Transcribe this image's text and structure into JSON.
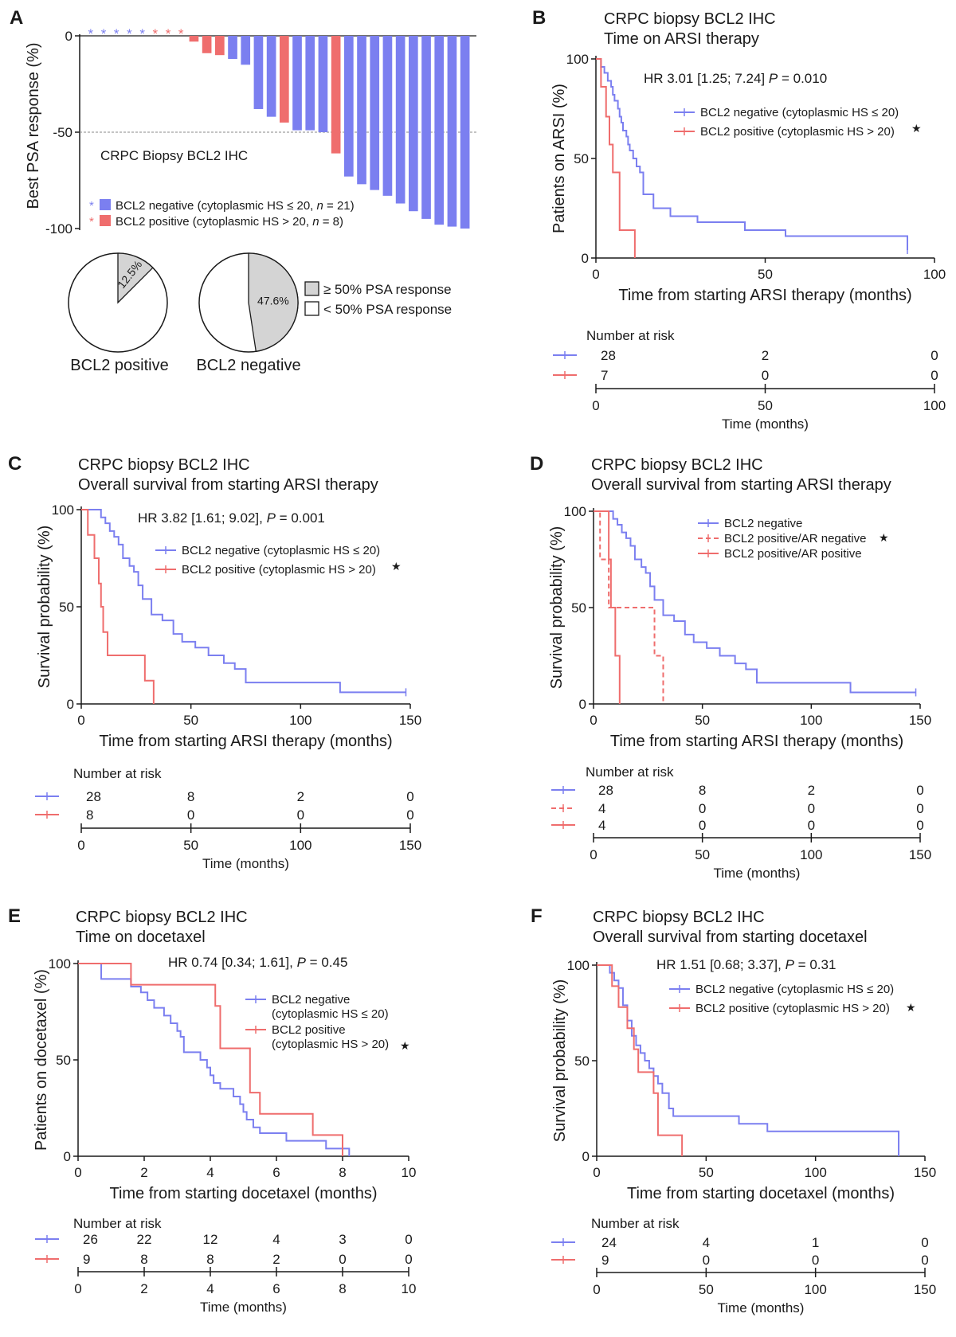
{
  "colors": {
    "negative": "#7b7ff0",
    "positive": "#ef6d6d",
    "axis": "#1a1a1a",
    "pie_fill": "#d4d4d4"
  },
  "panelA": {
    "letter": "A",
    "ylabel": "Best PSA response (%)",
    "subtitle": "CRPC Biopsy BCL2 IHC",
    "legend": [
      {
        "prefix": "BCL2 negative (cytoplasmic HS ≤ 20, ",
        "n": "n",
        "suffix": " = 21)",
        "color": "negative"
      },
      {
        "prefix": "BCL2 positive (cytoplasmic HS > 20, ",
        "n": "n",
        "suffix": " = 8)",
        "color": "positive"
      }
    ],
    "star": "*",
    "pies": [
      {
        "label": "BCL2 positive",
        "pct_label": "12.5%",
        "fraction": 0.125
      },
      {
        "label": "BCL2 negative",
        "pct_label": "47.6%",
        "fraction": 0.476
      }
    ],
    "pie_legend": [
      "≥ 50% PSA response",
      "< 50% PSA response"
    ]
  },
  "panelB": {
    "letter": "B",
    "title": [
      "CRPC biopsy BCL2 IHC",
      "Time on ARSI therapy"
    ],
    "hr_text": "HR 3.01 [1.25; 7.24] ",
    "p_label": "P",
    "p_text": " = 0.010",
    "ylabel": "Patients on ARSI (%)",
    "xlabel": "Time from starting ARSI therapy (months)",
    "legend": [
      "BCL2 negative (cytoplasmic HS ≤ 20)",
      "BCL2 positive (cytoplasmic HS > 20)"
    ],
    "risk_title": "Number at risk",
    "risk_rows": [
      [
        "28",
        "2",
        "0"
      ],
      [
        "7",
        "0",
        "0"
      ]
    ],
    "risk_xlabel": "Time (months)",
    "xticks": [
      "0",
      "50",
      "100"
    ],
    "yticks": [
      "0",
      "50",
      "100"
    ]
  },
  "panelC": {
    "letter": "C",
    "title": [
      "CRPC biopsy BCL2 IHC",
      "Overall survival from starting ARSI therapy"
    ],
    "hr_text": "HR 3.82 [1.61; 9.02], ",
    "p_label": "P",
    "p_text": " = 0.001",
    "ylabel": "Survival probability (%)",
    "xlabel": "Time from starting ARSI therapy (months)",
    "legend": [
      "BCL2 negative (cytoplasmic HS ≤ 20)",
      "BCL2 positive (cytoplasmic HS > 20)"
    ],
    "risk_title": "Number at risk",
    "risk_rows": [
      [
        "28",
        "8",
        "2",
        "0"
      ],
      [
        "8",
        "0",
        "0",
        "0"
      ]
    ],
    "risk_xlabel": "Time (months)",
    "xticks": [
      "0",
      "50",
      "100",
      "150"
    ],
    "yticks": [
      "0",
      "50",
      "100"
    ]
  },
  "panelD": {
    "letter": "D",
    "title": [
      "CRPC biopsy BCL2 IHC",
      "Overall survival from starting ARSI therapy"
    ],
    "ylabel": "Survival probability (%)",
    "xlabel": "Time from starting ARSI therapy (months)",
    "legend": [
      "BCL2 negative",
      "BCL2 positive/AR negative",
      "BCL2 positive/AR positive"
    ],
    "risk_title": "Number at risk",
    "risk_rows": [
      [
        "28",
        "8",
        "2",
        "0"
      ],
      [
        "4",
        "0",
        "0",
        "0"
      ],
      [
        "4",
        "0",
        "0",
        "0"
      ]
    ],
    "risk_xlabel": "Time (months)",
    "xticks": [
      "0",
      "50",
      "100",
      "150"
    ],
    "yticks": [
      "0",
      "50",
      "100"
    ]
  },
  "panelE": {
    "letter": "E",
    "title": [
      "CRPC biopsy BCL2 IHC",
      "Time on docetaxel"
    ],
    "hr_text": "HR 0.74 [0.34; 1.61], ",
    "p_label": "P",
    "p_text": " = 0.45",
    "ylabel": "Patients on docetaxel (%)",
    "xlabel": "Time from starting docetaxel (months)",
    "legend": [
      [
        "BCL2 negative",
        "(cytoplasmic HS ≤ 20)"
      ],
      [
        "BCL2 positive",
        "(cytoplasmic HS > 20)"
      ]
    ],
    "risk_title": "Number at risk",
    "risk_rows": [
      [
        "26",
        "22",
        "12",
        "4",
        "3",
        "0"
      ],
      [
        "9",
        "8",
        "8",
        "2",
        "0",
        "0"
      ]
    ],
    "risk_xlabel": "Time (months)",
    "xticks": [
      "0",
      "2",
      "4",
      "6",
      "8",
      "10"
    ],
    "yticks": [
      "0",
      "50",
      "100"
    ]
  },
  "panelF": {
    "letter": "F",
    "title": [
      "CRPC biopsy BCL2 IHC",
      "Overall survival from starting docetaxel"
    ],
    "hr_text": "HR 1.51 [0.68; 3.37], ",
    "p_label": "P",
    "p_text": " = 0.31",
    "ylabel": "Survival probability (%)",
    "xlabel": "Time from starting docetaxel (months)",
    "legend": [
      "BCL2 negative (cytoplasmic HS ≤ 20)",
      "BCL2 positive (cytoplasmic HS > 20)"
    ],
    "risk_title": "Number at risk",
    "risk_rows": [
      [
        "24",
        "4",
        "1",
        "0"
      ],
      [
        "9",
        "0",
        "0",
        "0"
      ]
    ],
    "risk_xlabel": "Time (months)",
    "xticks": [
      "0",
      "50",
      "100",
      "150"
    ],
    "yticks": [
      "0",
      "50",
      "100"
    ]
  },
  "sig_star": "★",
  "chart_data": [
    {
      "panel": "A",
      "type": "bar",
      "ylabel": "Best PSA response (%)",
      "ylim": [
        -100,
        0
      ],
      "yticks": [
        0,
        -50,
        -100
      ],
      "threshold": -50,
      "values": [
        0,
        0,
        0,
        0,
        0,
        0,
        0,
        0,
        -3,
        -9,
        -10,
        -12,
        -15,
        -38,
        -42,
        -45,
        -49,
        -49,
        -50,
        -61,
        -73,
        -77,
        -80,
        -83,
        -87,
        -91,
        -95,
        -98,
        -99,
        -100
      ],
      "groups": [
        "neg",
        "neg",
        "neg",
        "neg",
        "neg",
        "pos",
        "pos",
        "pos",
        "pos",
        "pos",
        "pos",
        "neg",
        "neg",
        "neg",
        "neg",
        "pos",
        "neg",
        "neg",
        "neg",
        "pos",
        "neg",
        "neg",
        "neg",
        "neg",
        "neg",
        "neg",
        "neg",
        "neg",
        "neg",
        "neg"
      ],
      "star_groups": [
        "neg",
        "neg",
        "neg",
        "neg",
        "neg",
        "pos",
        "pos",
        "pos"
      ]
    },
    {
      "panel": "B",
      "type": "line",
      "xlim": [
        0,
        100
      ],
      "ylim": [
        0,
        100
      ],
      "series": [
        {
          "name": "BCL2 negative (cytoplasmic HS ≤ 20)",
          "color": "negative",
          "x": [
            0,
            1.5,
            2.5,
            3.5,
            4.5,
            5,
            5.5,
            6.5,
            7,
            7.5,
            8,
            9,
            9.5,
            10,
            11,
            12,
            13,
            14,
            17,
            22,
            30,
            44,
            56,
            92
          ],
          "y": [
            100,
            96,
            93,
            89,
            86,
            82,
            79,
            75,
            71,
            68,
            64,
            61,
            57,
            54,
            50,
            46,
            43,
            32,
            25,
            21,
            18,
            14,
            11,
            4
          ]
        },
        {
          "name": "BCL2 positive (cytoplasmic HS > 20)",
          "color": "positive",
          "x": [
            0,
            1.5,
            2.5,
            3,
            4,
            5,
            6,
            7,
            9,
            11.5
          ],
          "y": [
            100,
            86,
            86,
            71,
            57,
            43,
            43,
            14,
            14,
            0
          ]
        }
      ]
    },
    {
      "panel": "C",
      "type": "line",
      "xlim": [
        0,
        150
      ],
      "ylim": [
        0,
        100
      ],
      "series": [
        {
          "name": "BCL2 negative (cytoplasmic HS ≤ 20)",
          "color": "negative",
          "x": [
            0,
            9,
            11,
            13,
            15,
            17,
            19,
            22,
            24,
            26,
            28,
            32,
            37,
            42,
            46,
            52,
            58,
            65,
            70,
            75,
            118,
            148
          ],
          "y": [
            100,
            96,
            93,
            89,
            86,
            82,
            75,
            71,
            68,
            61,
            54,
            46,
            43,
            36,
            32,
            29,
            25,
            21,
            18,
            11,
            6,
            6
          ]
        },
        {
          "name": "BCL2 positive (cytoplasmic HS > 20)",
          "color": "positive",
          "x": [
            0,
            3,
            6,
            8,
            9,
            10,
            12,
            29,
            33
          ],
          "y": [
            100,
            87,
            75,
            62,
            50,
            37,
            25,
            12,
            0
          ]
        }
      ]
    },
    {
      "panel": "D",
      "type": "line",
      "xlim": [
        0,
        150
      ],
      "ylim": [
        0,
        100
      ],
      "series": [
        {
          "name": "BCL2 negative",
          "color": "negative",
          "dash": false,
          "x": [
            0,
            9,
            11,
            13,
            15,
            17,
            19,
            22,
            24,
            26,
            28,
            32,
            37,
            42,
            46,
            52,
            58,
            65,
            70,
            75,
            118,
            148
          ],
          "y": [
            100,
            96,
            93,
            89,
            86,
            82,
            75,
            71,
            68,
            61,
            54,
            46,
            43,
            36,
            32,
            29,
            25,
            21,
            18,
            11,
            6,
            6
          ]
        },
        {
          "name": "BCL2 positive/AR negative",
          "color": "positive",
          "dash": true,
          "x": [
            0,
            3,
            7,
            9,
            28,
            32
          ],
          "y": [
            100,
            75,
            50,
            50,
            25,
            0
          ]
        },
        {
          "name": "BCL2 positive/AR positive",
          "color": "positive",
          "dash": false,
          "x": [
            0,
            7,
            8,
            10,
            12
          ],
          "y": [
            100,
            75,
            50,
            25,
            0
          ]
        }
      ]
    },
    {
      "panel": "E",
      "type": "line",
      "xlim": [
        0,
        10
      ],
      "ylim": [
        0,
        100
      ],
      "series": [
        {
          "name": "BCL2 negative",
          "color": "negative",
          "x": [
            0,
            0.7,
            1.6,
            1.9,
            2.1,
            2.3,
            2.6,
            2.8,
            3.0,
            3.1,
            3.2,
            3.7,
            3.9,
            4.0,
            4.1,
            4.3,
            4.7,
            4.9,
            5.0,
            5.1,
            5.3,
            5.5,
            6.3,
            7.5,
            8.0,
            8.2
          ],
          "y": [
            100,
            92,
            88,
            85,
            81,
            77,
            73,
            69,
            65,
            62,
            54,
            50,
            46,
            42,
            38,
            35,
            31,
            27,
            23,
            19,
            15,
            12,
            8,
            4,
            4,
            0
          ]
        },
        {
          "name": "BCL2 positive",
          "color": "positive",
          "x": [
            0,
            1.6,
            2.0,
            4.1,
            4.15,
            4.3,
            5.2,
            5.5,
            7.1,
            8.0
          ],
          "y": [
            100,
            89,
            89,
            89,
            78,
            56,
            33,
            22,
            11,
            0
          ]
        }
      ]
    },
    {
      "panel": "F",
      "type": "line",
      "xlim": [
        0,
        150
      ],
      "ylim": [
        0,
        100
      ],
      "series": [
        {
          "name": "BCL2 negative (cytoplasmic HS ≤ 20)",
          "color": "negative",
          "x": [
            0,
            6,
            8,
            10,
            12,
            14,
            16,
            18,
            20,
            22,
            24,
            26,
            28,
            30,
            33,
            35,
            65,
            78,
            138
          ],
          "y": [
            100,
            96,
            92,
            88,
            79,
            71,
            63,
            58,
            54,
            50,
            46,
            42,
            38,
            33,
            25,
            21,
            17,
            13,
            0
          ]
        },
        {
          "name": "BCL2 positive (cytoplasmic HS > 20)",
          "color": "positive",
          "x": [
            0,
            7,
            10,
            14,
            17,
            19,
            26,
            28,
            39
          ],
          "y": [
            100,
            89,
            78,
            67,
            56,
            44,
            33,
            11,
            0
          ]
        }
      ]
    }
  ]
}
